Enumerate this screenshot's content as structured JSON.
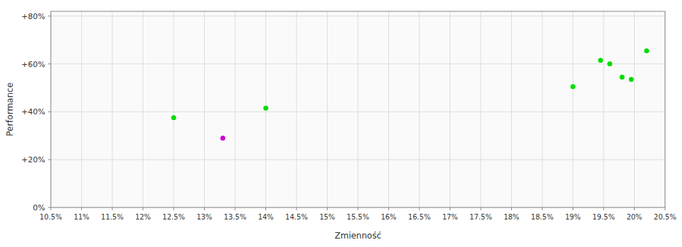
{
  "chart_data": {
    "type": "scatter",
    "xlabel": "Zmienność",
    "ylabel": "Performance",
    "xlim": [
      0.105,
      0.205
    ],
    "ylim": [
      0.0,
      0.82
    ],
    "xticks": [
      {
        "value": 0.105,
        "label": "10.5%"
      },
      {
        "value": 0.11,
        "label": "11%"
      },
      {
        "value": 0.115,
        "label": "11.5%"
      },
      {
        "value": 0.12,
        "label": "12%"
      },
      {
        "value": 0.125,
        "label": "12.5%"
      },
      {
        "value": 0.13,
        "label": "13%"
      },
      {
        "value": 0.135,
        "label": "13.5%"
      },
      {
        "value": 0.14,
        "label": "14%"
      },
      {
        "value": 0.145,
        "label": "14.5%"
      },
      {
        "value": 0.15,
        "label": "15%"
      },
      {
        "value": 0.155,
        "label": "15.5%"
      },
      {
        "value": 0.16,
        "label": "16%"
      },
      {
        "value": 0.165,
        "label": "16.5%"
      },
      {
        "value": 0.17,
        "label": "17%"
      },
      {
        "value": 0.175,
        "label": "17.5%"
      },
      {
        "value": 0.18,
        "label": "18%"
      },
      {
        "value": 0.185,
        "label": "18.5%"
      },
      {
        "value": 0.19,
        "label": "19%"
      },
      {
        "value": 0.195,
        "label": "19.5%"
      },
      {
        "value": 0.2,
        "label": "20%"
      },
      {
        "value": 0.205,
        "label": "20.5%"
      }
    ],
    "yticks": [
      {
        "value": 0.0,
        "label": "0%"
      },
      {
        "value": 0.2,
        "label": "+20%"
      },
      {
        "value": 0.4,
        "label": "+40%"
      },
      {
        "value": 0.6,
        "label": "+60%"
      },
      {
        "value": 0.8,
        "label": "+80%"
      }
    ],
    "grid": true,
    "series": [
      {
        "color": "#00dd00",
        "x": [
          0.125,
          0.14,
          0.19,
          0.1945,
          0.196,
          0.198,
          0.1995,
          0.202
        ],
        "values": [
          0.375,
          0.415,
          0.505,
          0.615,
          0.6,
          0.545,
          0.535,
          0.655
        ]
      },
      {
        "color": "#cc00cc",
        "x": [
          0.133
        ],
        "values": [
          0.29
        ]
      }
    ]
  }
}
